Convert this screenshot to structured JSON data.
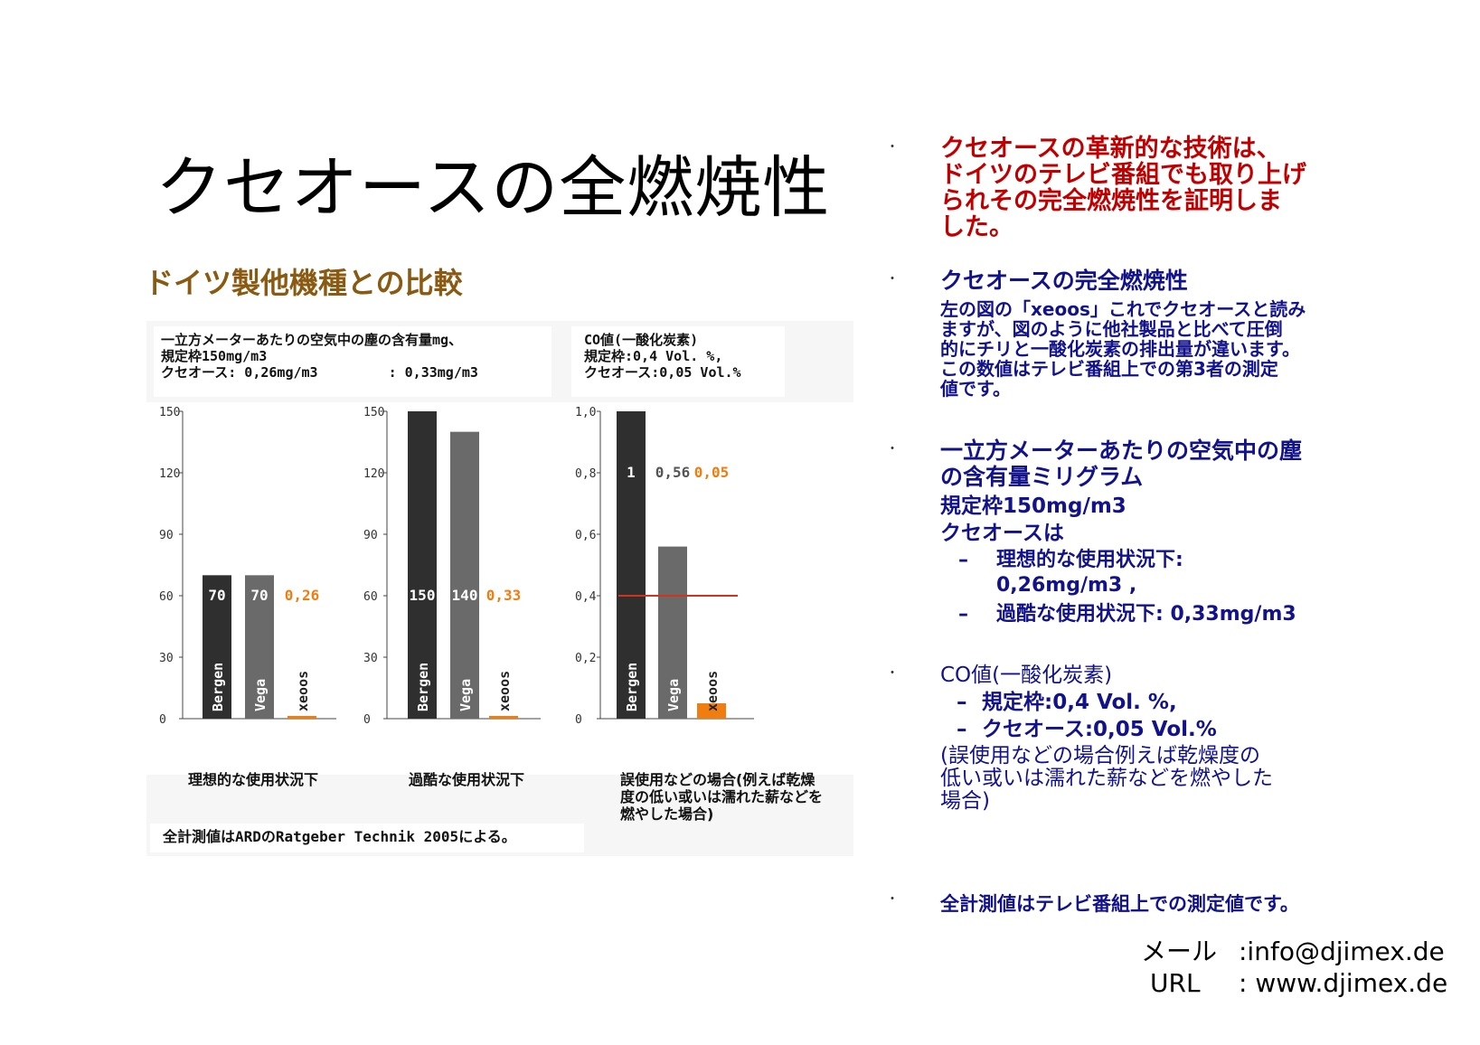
{
  "slide": {
    "title": "クセオースの全燃焼性",
    "subtitle": "ドイツ製他機種との比較"
  },
  "figure": {
    "note_left": [
      "一立方メーターあたりの空気中の塵の含有量mg、",
      "規定枠150mg/m3",
      "クセオース: 0,26mg/m3",
      ": 0,33mg/m3"
    ],
    "note_right": [
      "CO値(一酸化炭素)",
      "規定枠:0,4 Vol. %,",
      "クセオース:0,05 Vol.%"
    ],
    "captions": [
      "理想的な使用状況下",
      "過酷な使用状況下",
      "誤使用などの場合(例えば乾燥",
      "度の低い或いは濡れた薪などを",
      "燃やした場合)"
    ],
    "footnote": "全計測値はARDのRatgeber Technik 2005による。"
  },
  "chart_data": [
    {
      "type": "bar",
      "categories": [
        "Bergen",
        "Vega",
        "xeoos"
      ],
      "values": [
        70,
        70,
        0.26
      ],
      "value_labels": [
        "70",
        "70",
        "0,26"
      ],
      "yticks": [
        "0",
        "30",
        "60",
        "90",
        "120",
        "150"
      ],
      "ylim": [
        0,
        150
      ],
      "xlabel": "理想的な使用状況下",
      "ylabel": ""
    },
    {
      "type": "bar",
      "categories": [
        "Bergen",
        "Vega",
        "xeoos"
      ],
      "values": [
        150,
        140,
        0.33
      ],
      "value_labels": [
        "150",
        "140",
        "0,33"
      ],
      "yticks": [
        "0",
        "30",
        "60",
        "90",
        "120",
        "150"
      ],
      "ylim": [
        0,
        150
      ],
      "xlabel": "過酷な使用状況下",
      "ylabel": ""
    },
    {
      "type": "bar",
      "categories": [
        "Bergen",
        "Vega",
        "xeoos"
      ],
      "values": [
        1.0,
        0.56,
        0.05
      ],
      "value_labels": [
        "1",
        "0,56",
        "0,05"
      ],
      "yticks": [
        "0",
        "0,2",
        "0,4",
        "0,6",
        "0,8",
        "1,0"
      ],
      "ylim": [
        0,
        1.0
      ],
      "reference_line": 0.4,
      "xlabel": "誤使用などの場合(例えば乾燥度の低い或いは濡れた薪などを燃やした場合)",
      "ylabel": ""
    }
  ],
  "chart_colors": {
    "bergen": "#2f2f2f",
    "vega": "#6a6a6a",
    "xeoos": "#f07d10",
    "reference": "#d2331e"
  },
  "right": {
    "b1": [
      "クセオースの革新的な技術は、",
      "ドイツのテレビ番組でも取り上げ",
      "られその完全燃焼性を証明しま",
      "した。"
    ],
    "b2_head": "クセオースの完全燃焼性",
    "b2_body": [
      "左の図の「xeoos」これでクセオースと読み",
      "ますが、図のように他社製品と比べて圧倒",
      "的にチリと一酸化炭素の排出量が違います。",
      "この数値はテレビ番組上での第3者の測定",
      "値です。"
    ],
    "b3_head": [
      "一立方メーターあたりの空気中の塵",
      "の含有量ミリグラム"
    ],
    "b3_limit": "規定枠150mg/m3",
    "b3_xeoos": "クセオースは",
    "b3_sub1": [
      "理想的な使用状況下:",
      "0,26mg/m3 ,"
    ],
    "b3_sub2": "過酷な使用状況下: 0,33mg/m3",
    "b4_head": "CO値(一酸化炭素)",
    "b4_sub1": "規定枠:0,4 Vol. %,",
    "b4_sub2": "クセオース:0,05 Vol.%",
    "b4_note": [
      "(誤使用などの場合例えば乾燥度の",
      "低い或いは濡れた薪などを燃やした",
      "場合)"
    ],
    "b5": "全計測値はテレビ番組上での測定値です。",
    "bullet": "・",
    "dash": "–"
  },
  "contact": {
    "mail_label": "メール",
    "mail": ":info@djimex.de",
    "url_label": "URL",
    "url": ": www.djimex.de"
  }
}
